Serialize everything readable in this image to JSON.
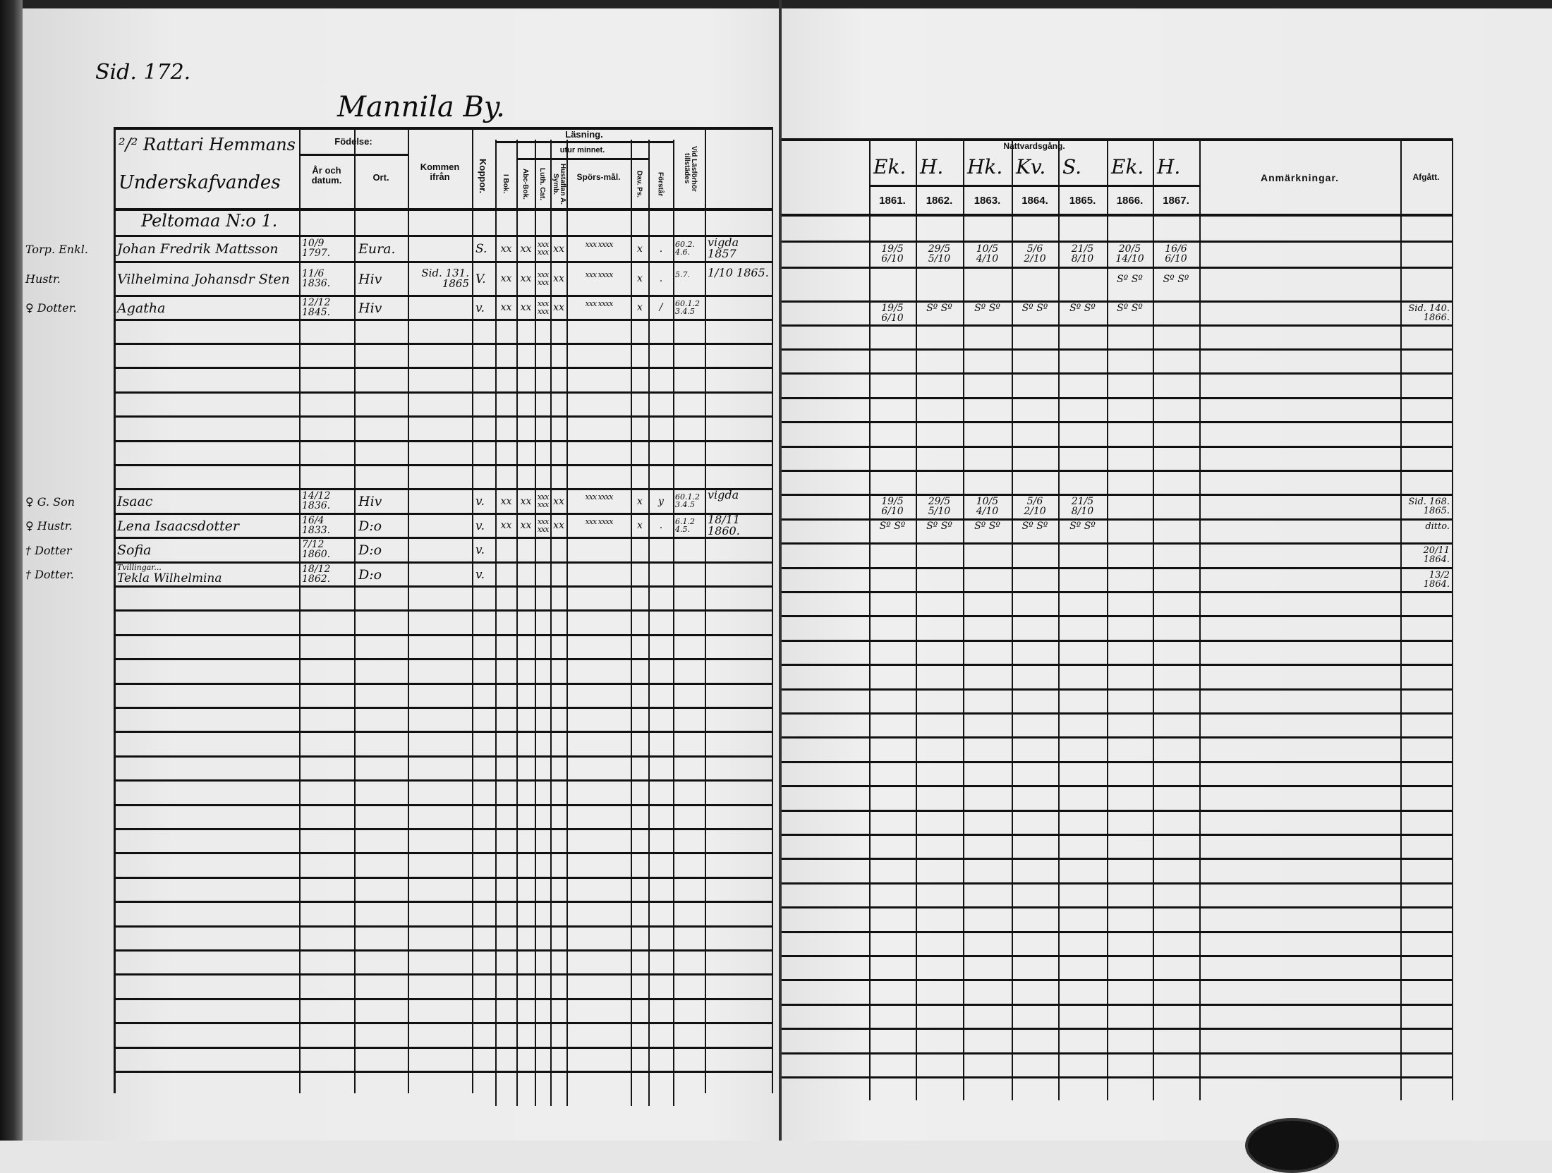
{
  "page_ref": "Sid. 172.",
  "village": "Mannila By.",
  "homestead": {
    "line1": "²/² Rattari Hemmans",
    "line2": "Underskafvandes",
    "croft": "Peltomaa N:o 1."
  },
  "headers_left": {
    "birth": "Födelse:",
    "birth_date": "År och datum.",
    "birth_place": "Ort.",
    "came_from": "Kommen ifrån",
    "smallpox": "Koppor.",
    "reading": "Läsning.",
    "by_heart": "utur minnet.",
    "in_book": "I Bok.",
    "abc": "Abc-Bok.",
    "luth_cat": "Luth. Cat.",
    "hustaflan": "Hustaflan A. Symb.",
    "sporsmal": "Spörs-mål.",
    "dav_ps": "Dav. Ps.",
    "forstar": "Förstår",
    "hearing": "Vid Läsförhör tillstädes"
  },
  "headers_right": {
    "communion": "Nattvardsgång.",
    "places": [
      "Ek.",
      "H.",
      "Hk.",
      "Kv.",
      "S.",
      "Ek.",
      "H."
    ],
    "years": [
      "1861.",
      "1862.",
      "1863.",
      "1864.",
      "1865.",
      "1866.",
      "1867."
    ],
    "remarks": "Anmärkningar.",
    "departed": "Afgått."
  },
  "rows": [
    {
      "role": "Torp. Enkl.",
      "name": "Johan Fredrik Mattsson",
      "birth_date": "10/9 1797.",
      "birth_place": "Eura.",
      "came_from": "",
      "smallpox": "S.",
      "reading": [
        "xx",
        "xx",
        "xxx xxx",
        "xx",
        "xxx xxxx",
        "x",
        "."
      ],
      "hearing": "60.2. 4.6.",
      "note": "vigda 1857",
      "communion": [
        "19/5 6/10",
        "29/5 5/10",
        "10/5 4/10",
        "5/6 2/10",
        "21/5 8/10",
        "20/5 14/10",
        "16/6 6/10"
      ],
      "departed": ""
    },
    {
      "role": "Hustr.",
      "name": "Vilhelmina Johansdr Sten",
      "birth_date": "11/6 1836.",
      "birth_place": "Hiv",
      "came_from": "Sid. 131. 1865",
      "smallpox": "V.",
      "reading": [
        "xx",
        "xx",
        "xxx xxx",
        "xx",
        "xxx xxxx",
        "x",
        "."
      ],
      "hearing": "5.7.",
      "note": "1/10 1865.",
      "communion": [
        "",
        "",
        "",
        "",
        "",
        "Sº Sº",
        "Sº Sº"
      ],
      "departed": ""
    },
    {
      "role": "♀ Dotter.",
      "name": "Agatha",
      "birth_date": "12/12 1845.",
      "birth_place": "Hiv",
      "came_from": "",
      "smallpox": "v.",
      "reading": [
        "xx",
        "xx",
        "xxx xxx",
        "xx",
        "xxx xxxx",
        "x",
        "/"
      ],
      "hearing": "60.1.2 3.4.5",
      "note": "",
      "communion": [
        "19/5 6/10",
        "Sº Sº",
        "Sº Sº",
        "Sº Sº",
        "Sº Sº",
        "Sº Sº",
        ""
      ],
      "departed": "Sid. 140. 1866."
    },
    {
      "role": "♀ G. Son",
      "name": "Isaac",
      "birth_date": "14/12 1836.",
      "birth_place": "Hiv",
      "came_from": "",
      "smallpox": "v.",
      "reading": [
        "xx",
        "xx",
        "xxx xxx",
        "xx",
        "xxx xxxx",
        "x",
        "y"
      ],
      "hearing": "60.1.2 3.4.5",
      "note": "vigda",
      "communion": [
        "19/5 6/10",
        "29/5 5/10",
        "10/5 4/10",
        "5/6 2/10",
        "21/5 8/10",
        "",
        ""
      ],
      "departed": "Sid. 168. 1865."
    },
    {
      "role": "♀ Hustr.",
      "name": "Lena Isaacsdotter",
      "birth_date": "16/4 1833.",
      "birth_place": "D:o",
      "came_from": "",
      "smallpox": "v.",
      "reading": [
        "xx",
        "xx",
        "xxx xxx",
        "xx",
        "xxx xxxx",
        "x",
        "."
      ],
      "hearing": "6.1.2 4.5.",
      "note": "18/11 1860.",
      "communion": [
        "Sº Sº",
        "Sº Sº",
        "Sº Sº",
        "Sº Sº",
        "Sº Sº",
        "",
        ""
      ],
      "departed": "ditto."
    },
    {
      "role": "† Dotter",
      "name": "Sofia",
      "birth_date": "7/12 1860.",
      "birth_place": "D:o",
      "came_from": "",
      "smallpox": "v.",
      "reading": [
        "",
        "",
        "",
        "",
        "",
        "",
        ""
      ],
      "hearing": "",
      "note": "",
      "communion": [
        "",
        "",
        "",
        "",
        "",
        "",
        ""
      ],
      "departed": "20/11 1864."
    },
    {
      "role": "† Dotter.",
      "name": "Tekla Wilhelmina",
      "name_note": "Tvillingar...",
      "birth_date": "18/12 1862.",
      "birth_place": "D:o",
      "came_from": "",
      "smallpox": "v.",
      "reading": [
        "",
        "",
        "",
        "",
        "",
        "",
        ""
      ],
      "hearing": "",
      "note": "",
      "communion": [
        "",
        "",
        "",
        "",
        "",
        "",
        ""
      ],
      "departed": "13/2 1864."
    }
  ]
}
